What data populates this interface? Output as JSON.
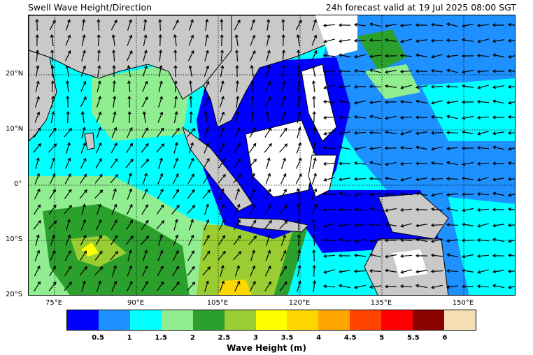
{
  "title": "Swell Wave Height/Direction",
  "forecast": "24h forecast valid at 19 Jul 2025 08:00 SGT",
  "lat_labels": [
    "20°N",
    "10°N",
    "0°",
    "10°S",
    "20°S"
  ],
  "lon_labels": [
    "75°E",
    "90°E",
    "105°E",
    "120°E",
    "135°E",
    "150°E"
  ],
  "colorbar": {
    "label": "Wave Height (m)",
    "ticks": [
      "0.5",
      "1",
      "1.5",
      "2",
      "2.5",
      "3",
      "3.5",
      "4",
      "4.5",
      "5",
      "5.5",
      "6"
    ],
    "colors": [
      "#0000ff",
      "#1e90ff",
      "#00ffff",
      "#90ee90",
      "#2ca02c",
      "#9acd32",
      "#ffff00",
      "#ffd700",
      "#ffa500",
      "#ff4500",
      "#ff0000",
      "#8b0000",
      "#f5deb3"
    ]
  },
  "colors": {
    "land": "#c9c9c9",
    "no_data": "#ffffff"
  }
}
